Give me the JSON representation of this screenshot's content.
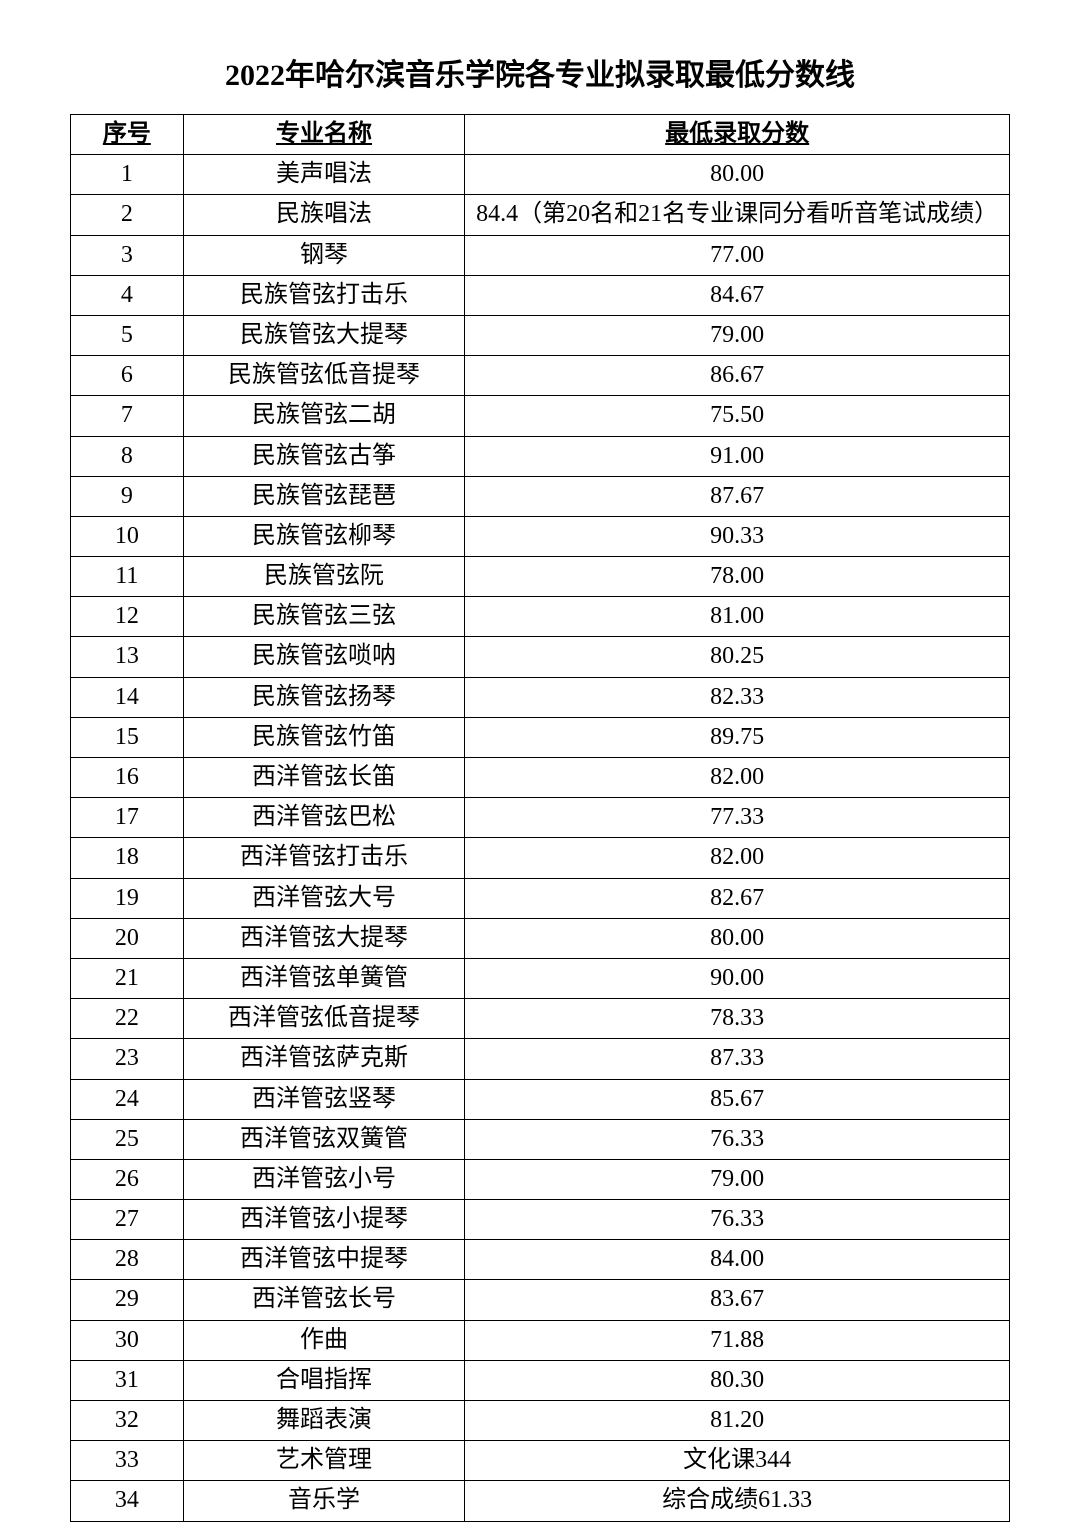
{
  "title": "2022年哈尔滨音乐学院各专业拟录取最低分数线",
  "table": {
    "columns": [
      "序号",
      "专业名称",
      "最低录取分数"
    ],
    "rows": [
      [
        "1",
        "美声唱法",
        "80.00"
      ],
      [
        "2",
        "民族唱法",
        "84.4（第20名和21名专业课同分看听音笔试成绩）"
      ],
      [
        "3",
        "钢琴",
        "77.00"
      ],
      [
        "4",
        "民族管弦打击乐",
        "84.67"
      ],
      [
        "5",
        "民族管弦大提琴",
        "79.00"
      ],
      [
        "6",
        "民族管弦低音提琴",
        "86.67"
      ],
      [
        "7",
        "民族管弦二胡",
        "75.50"
      ],
      [
        "8",
        "民族管弦古筝",
        "91.00"
      ],
      [
        "9",
        "民族管弦琵琶",
        "87.67"
      ],
      [
        "10",
        "民族管弦柳琴",
        "90.33"
      ],
      [
        "11",
        "民族管弦阮",
        "78.00"
      ],
      [
        "12",
        "民族管弦三弦",
        "81.00"
      ],
      [
        "13",
        "民族管弦唢呐",
        "80.25"
      ],
      [
        "14",
        "民族管弦扬琴",
        "82.33"
      ],
      [
        "15",
        "民族管弦竹笛",
        "89.75"
      ],
      [
        "16",
        "西洋管弦长笛",
        "82.00"
      ],
      [
        "17",
        "西洋管弦巴松",
        "77.33"
      ],
      [
        "18",
        "西洋管弦打击乐",
        "82.00"
      ],
      [
        "19",
        "西洋管弦大号",
        "82.67"
      ],
      [
        "20",
        "西洋管弦大提琴",
        "80.00"
      ],
      [
        "21",
        "西洋管弦单簧管",
        "90.00"
      ],
      [
        "22",
        "西洋管弦低音提琴",
        "78.33"
      ],
      [
        "23",
        "西洋管弦萨克斯",
        "87.33"
      ],
      [
        "24",
        "西洋管弦竖琴",
        "85.67"
      ],
      [
        "25",
        "西洋管弦双簧管",
        "76.33"
      ],
      [
        "26",
        "西洋管弦小号",
        "79.00"
      ],
      [
        "27",
        "西洋管弦小提琴",
        "76.33"
      ],
      [
        "28",
        "西洋管弦中提琴",
        "84.00"
      ],
      [
        "29",
        "西洋管弦长号",
        "83.67"
      ],
      [
        "30",
        "作曲",
        "71.88"
      ],
      [
        "31",
        "合唱指挥",
        "80.30"
      ],
      [
        "32",
        "舞蹈表演",
        "81.20"
      ],
      [
        "33",
        "艺术管理",
        "文化课344"
      ],
      [
        "34",
        "音乐学",
        "综合成绩61.33"
      ]
    ],
    "border_color": "#000000",
    "text_color": "#000000",
    "background_color": "#ffffff",
    "header_fontsize": 24,
    "cell_fontsize": 24,
    "title_fontsize": 30
  }
}
